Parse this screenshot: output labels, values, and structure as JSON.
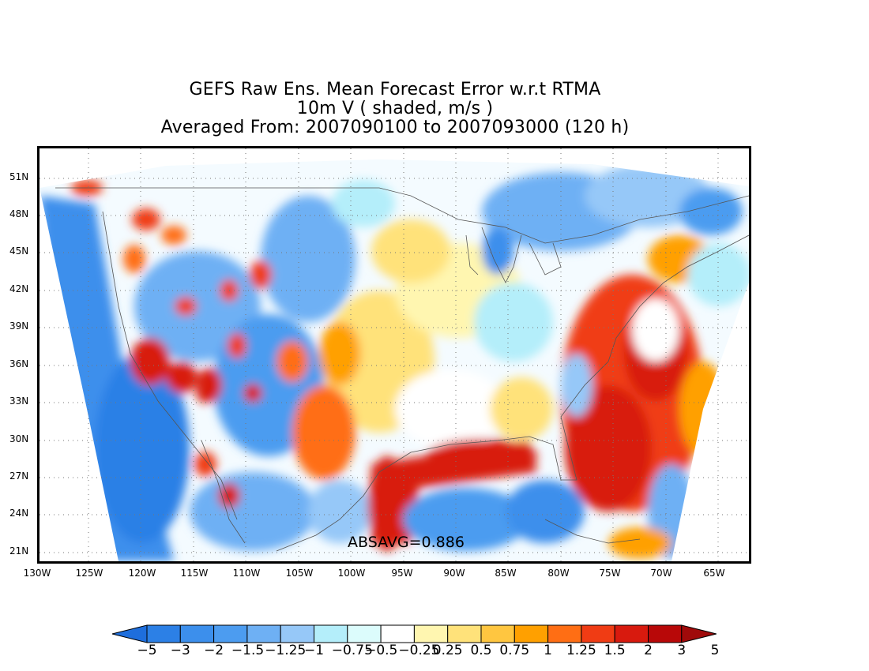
{
  "title": {
    "line1": "GEFS Raw Ens. Mean Forecast Error w.r.t RTMA",
    "line2": "10m V ( shaded, m/s )",
    "line3": "Averaged From: 2007090100 to 2007093000 (120 h)"
  },
  "map": {
    "lat_labels": [
      "51N",
      "48N",
      "45N",
      "42N",
      "39N",
      "36N",
      "33N",
      "30N",
      "27N",
      "24N",
      "21N"
    ],
    "lon_labels": [
      "130W",
      "125W",
      "120W",
      "115W",
      "110W",
      "105W",
      "100W",
      "95W",
      "90W",
      "85W",
      "80W",
      "75W",
      "70W",
      "65W"
    ],
    "absavg": "ABSAVG=0.886"
  },
  "colorbar": {
    "labels": [
      "−5",
      "−3",
      "−2",
      "−1.5",
      "−1.25",
      "−1",
      "−0.75",
      "−0.5",
      "−0.25",
      "0.25",
      "0.5",
      "0.75",
      "1",
      "1.25",
      "1.5",
      "2",
      "3",
      "5"
    ],
    "colors": [
      "#1e6edc",
      "#2c80e6",
      "#3c8fec",
      "#4c9cf0",
      "#6eb0f4",
      "#96c8f8",
      "#b4eefa",
      "#dcfcfc",
      "#ffffff",
      "#fff6b0",
      "#ffe27a",
      "#ffc640",
      "#ffa000",
      "#ff6e14",
      "#f03c14",
      "#d81a0e",
      "#b80808",
      "#a00a0a"
    ]
  }
}
